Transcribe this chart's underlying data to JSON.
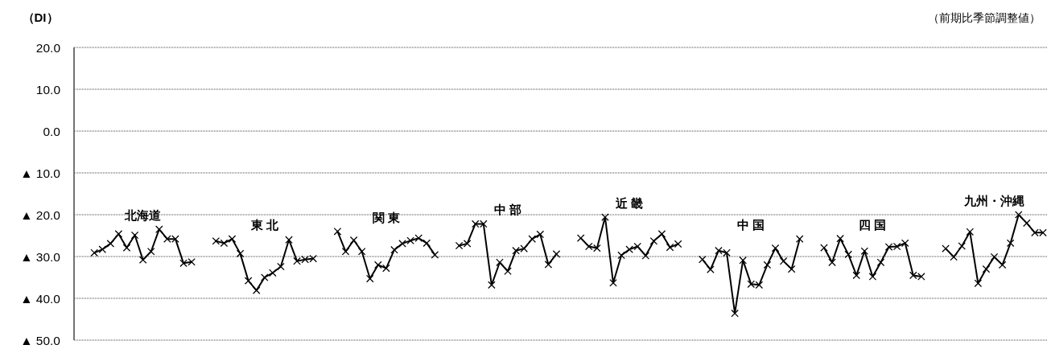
{
  "chart_data": {
    "type": "line",
    "ylabel": "（DI）",
    "annotations": [
      "（前期比季節調整値）"
    ],
    "categories": [
      null,
      null,
      null,
      null,
      null,
      null,
      null,
      null,
      null,
      null,
      null,
      null,
      null,
      null,
      null,
      null,
      null,
      null,
      null,
      null,
      null,
      null,
      null,
      null,
      null,
      null,
      null,
      null,
      null,
      null,
      null,
      null,
      null,
      null,
      null,
      null,
      null,
      null,
      null,
      null,
      null,
      null,
      null,
      null,
      null,
      null,
      null,
      null,
      null,
      null,
      null,
      null,
      null,
      null,
      null,
      null,
      null,
      null,
      null,
      null,
      null,
      null,
      null,
      null,
      null,
      null,
      null,
      null,
      null,
      null,
      null,
      null,
      null,
      null,
      null,
      null,
      null,
      null,
      null,
      null,
      null,
      null,
      null,
      null,
      null,
      null,
      null,
      null,
      null,
      null,
      null,
      null,
      null,
      null,
      null,
      null,
      null,
      null,
      null,
      null,
      null,
      null,
      null,
      null,
      null,
      null,
      null,
      null,
      null,
      null,
      null,
      null,
      null,
      null,
      null,
      null,
      null,
      null,
      null,
      null
    ],
    "series": [
      {
        "name": "北海道",
        "color": "#000000",
        "values": [
          null,
          null,
          -29.1,
          -28.3,
          -26.9,
          -24.6,
          -27.9,
          -24.9,
          -30.8,
          -28.8,
          -23.5,
          -25.8,
          -25.8,
          -31.6,
          -31.3,
          null,
          null,
          null,
          null,
          null,
          null,
          null,
          null,
          null,
          null,
          null,
          null,
          null,
          null,
          null,
          null,
          null,
          null,
          null,
          null,
          null,
          null,
          null,
          null,
          null,
          null,
          null,
          null,
          null,
          null,
          null,
          null,
          null,
          null,
          null,
          null,
          null,
          null,
          null,
          null,
          null,
          null,
          null,
          null,
          null,
          null,
          null,
          null,
          null,
          null,
          null,
          null,
          null,
          null,
          null,
          null,
          null,
          null,
          null,
          null,
          null,
          null,
          null,
          null,
          null,
          null,
          null,
          null,
          null,
          null,
          null,
          null,
          null,
          null,
          null,
          null,
          null,
          null,
          null,
          null,
          null,
          null,
          null,
          null,
          null,
          null,
          null,
          null,
          null,
          null,
          null,
          null,
          null,
          null,
          null,
          null,
          null,
          null,
          null,
          null,
          null,
          null,
          null,
          null,
          null
        ]
      },
      {
        "name": "東 北",
        "color": "#000000",
        "values": [
          null,
          null,
          null,
          null,
          null,
          null,
          null,
          null,
          null,
          null,
          null,
          null,
          null,
          null,
          null,
          null,
          null,
          -26.3,
          -26.8,
          -25.8,
          -29.3,
          -35.8,
          -38.1,
          -35.0,
          -33.9,
          -32.4,
          -26.0,
          -31.1,
          -30.7,
          -30.5,
          null,
          null,
          null,
          null,
          null,
          null,
          null,
          null,
          null,
          null,
          null,
          null,
          null,
          null,
          null,
          null,
          null,
          null,
          null,
          null,
          null,
          null,
          null,
          null,
          null,
          null,
          null,
          null,
          null,
          null,
          null,
          null,
          null,
          null,
          null,
          null,
          null,
          null,
          null,
          null,
          null,
          null,
          null,
          null,
          null,
          null,
          null,
          null,
          null,
          null,
          null,
          null,
          null,
          null,
          null,
          null,
          null,
          null,
          null,
          null,
          null,
          null,
          null,
          null,
          null,
          null,
          null,
          null,
          null,
          null,
          null,
          null,
          null,
          null,
          null,
          null,
          null,
          null,
          null,
          null,
          null,
          null,
          null,
          null,
          null,
          null,
          null,
          null,
          null,
          null
        ]
      },
      {
        "name": "関 東",
        "color": "#000000",
        "values": [
          null,
          null,
          null,
          null,
          null,
          null,
          null,
          null,
          null,
          null,
          null,
          null,
          null,
          null,
          null,
          null,
          null,
          null,
          null,
          null,
          null,
          null,
          null,
          null,
          null,
          null,
          null,
          null,
          null,
          null,
          null,
          null,
          -24.0,
          -28.8,
          -26.1,
          -28.8,
          -35.3,
          -32.0,
          -32.8,
          -28.4,
          -26.9,
          -26.2,
          -25.6,
          -26.8,
          -29.6,
          null,
          null,
          null,
          null,
          null,
          null,
          null,
          null,
          null,
          null,
          null,
          null,
          null,
          null,
          null,
          null,
          null,
          null,
          null,
          null,
          null,
          null,
          null,
          null,
          null,
          null,
          null,
          null,
          null,
          null,
          null,
          null,
          null,
          null,
          null,
          null,
          null,
          null,
          null,
          null,
          null,
          null,
          null,
          null,
          null,
          null,
          null,
          null,
          null,
          null,
          null,
          null,
          null,
          null,
          null,
          null,
          null,
          null,
          null,
          null,
          null,
          null,
          null,
          null,
          null,
          null,
          null,
          null,
          null,
          null,
          null,
          null,
          null,
          null,
          null
        ]
      },
      {
        "name": "中 部",
        "color": "#000000",
        "values": [
          null,
          null,
          null,
          null,
          null,
          null,
          null,
          null,
          null,
          null,
          null,
          null,
          null,
          null,
          null,
          null,
          null,
          null,
          null,
          null,
          null,
          null,
          null,
          null,
          null,
          null,
          null,
          null,
          null,
          null,
          null,
          null,
          null,
          null,
          null,
          null,
          null,
          null,
          null,
          null,
          null,
          null,
          null,
          null,
          null,
          null,
          null,
          -27.4,
          -26.9,
          -22.2,
          -22.2,
          -36.8,
          -31.4,
          -33.5,
          -28.6,
          -28.1,
          -25.8,
          -24.7,
          -31.9,
          -29.4,
          null,
          null,
          null,
          null,
          null,
          null,
          null,
          null,
          null,
          null,
          null,
          null,
          null,
          null,
          null,
          null,
          null,
          null,
          null,
          null,
          null,
          null,
          null,
          null,
          null,
          null,
          null,
          null,
          null,
          null,
          null,
          null,
          null,
          null,
          null,
          null,
          null,
          null,
          null,
          null,
          null,
          null,
          null,
          null,
          null,
          null,
          null,
          null,
          null,
          null,
          null,
          null,
          null,
          null,
          null,
          null,
          null,
          null,
          null,
          null
        ]
      },
      {
        "name": "近 畿",
        "color": "#000000",
        "values": [
          null,
          null,
          null,
          null,
          null,
          null,
          null,
          null,
          null,
          null,
          null,
          null,
          null,
          null,
          null,
          null,
          null,
          null,
          null,
          null,
          null,
          null,
          null,
          null,
          null,
          null,
          null,
          null,
          null,
          null,
          null,
          null,
          null,
          null,
          null,
          null,
          null,
          null,
          null,
          null,
          null,
          null,
          null,
          null,
          null,
          null,
          null,
          null,
          null,
          null,
          null,
          null,
          null,
          null,
          null,
          null,
          null,
          null,
          null,
          null,
          null,
          null,
          -25.6,
          -27.6,
          -28.0,
          -20.6,
          -36.3,
          -29.7,
          -28.3,
          -27.6,
          -29.8,
          -26.3,
          -24.6,
          -27.8,
          -27.0,
          null,
          null,
          null,
          null,
          null,
          null,
          null,
          null,
          null,
          null,
          null,
          null,
          null,
          null,
          null,
          null,
          null,
          null,
          null,
          null,
          null,
          null,
          null,
          null,
          null,
          null,
          null,
          null,
          null,
          null,
          null,
          null,
          null,
          null,
          null,
          null,
          null,
          null,
          null,
          null,
          null,
          null,
          null,
          null,
          null
        ]
      },
      {
        "name": "中 国",
        "color": "#000000",
        "values": [
          null,
          null,
          null,
          null,
          null,
          null,
          null,
          null,
          null,
          null,
          null,
          null,
          null,
          null,
          null,
          null,
          null,
          null,
          null,
          null,
          null,
          null,
          null,
          null,
          null,
          null,
          null,
          null,
          null,
          null,
          null,
          null,
          null,
          null,
          null,
          null,
          null,
          null,
          null,
          null,
          null,
          null,
          null,
          null,
          null,
          null,
          null,
          null,
          null,
          null,
          null,
          null,
          null,
          null,
          null,
          null,
          null,
          null,
          null,
          null,
          null,
          null,
          null,
          null,
          null,
          null,
          null,
          null,
          null,
          null,
          null,
          null,
          null,
          null,
          null,
          null,
          null,
          -30.7,
          -33.1,
          -28.6,
          -29.1,
          -43.6,
          -30.9,
          -36.6,
          -36.8,
          -32.0,
          -28.0,
          -31.1,
          -33.0,
          -25.8,
          null,
          null,
          null,
          null,
          null,
          null,
          null,
          null,
          null,
          null,
          null,
          null,
          null,
          null,
          null,
          null,
          null,
          null,
          null,
          null,
          null,
          null,
          null,
          null,
          null,
          null,
          null,
          null,
          null,
          null
        ]
      },
      {
        "name": "四 国",
        "color": "#000000",
        "values": [
          null,
          null,
          null,
          null,
          null,
          null,
          null,
          null,
          null,
          null,
          null,
          null,
          null,
          null,
          null,
          null,
          null,
          null,
          null,
          null,
          null,
          null,
          null,
          null,
          null,
          null,
          null,
          null,
          null,
          null,
          null,
          null,
          null,
          null,
          null,
          null,
          null,
          null,
          null,
          null,
          null,
          null,
          null,
          null,
          null,
          null,
          null,
          null,
          null,
          null,
          null,
          null,
          null,
          null,
          null,
          null,
          null,
          null,
          null,
          null,
          null,
          null,
          null,
          null,
          null,
          null,
          null,
          null,
          null,
          null,
          null,
          null,
          null,
          null,
          null,
          null,
          null,
          null,
          null,
          null,
          null,
          null,
          null,
          null,
          null,
          null,
          null,
          null,
          null,
          null,
          null,
          null,
          -27.9,
          -31.4,
          -25.7,
          -29.5,
          -34.5,
          -28.7,
          -34.8,
          -31.4,
          -27.7,
          -27.6,
          -26.8,
          -34.5,
          -34.8,
          null,
          null,
          null,
          null,
          null,
          null,
          null,
          null,
          null,
          null,
          null,
          null,
          null,
          null,
          null
        ]
      },
      {
        "name": "九州・沖縄",
        "color": "#000000",
        "values": [
          null,
          null,
          null,
          null,
          null,
          null,
          null,
          null,
          null,
          null,
          null,
          null,
          null,
          null,
          null,
          null,
          null,
          null,
          null,
          null,
          null,
          null,
          null,
          null,
          null,
          null,
          null,
          null,
          null,
          null,
          null,
          null,
          null,
          null,
          null,
          null,
          null,
          null,
          null,
          null,
          null,
          null,
          null,
          null,
          null,
          null,
          null,
          null,
          null,
          null,
          null,
          null,
          null,
          null,
          null,
          null,
          null,
          null,
          null,
          null,
          null,
          null,
          null,
          null,
          null,
          null,
          null,
          null,
          null,
          null,
          null,
          null,
          null,
          null,
          null,
          null,
          null,
          null,
          null,
          null,
          null,
          null,
          null,
          null,
          null,
          null,
          null,
          null,
          null,
          null,
          null,
          null,
          null,
          null,
          null,
          null,
          null,
          null,
          null,
          null,
          null,
          null,
          null,
          null,
          null,
          null,
          null,
          -28.1,
          -30.1,
          -27.5,
          -24.1,
          -36.4,
          -33.0,
          -30.1,
          -32.0,
          -26.8,
          -20.0,
          -22.0,
          -24.3,
          -24.3
        ]
      }
    ],
    "ylim": [
      -50,
      20
    ],
    "yticks": [
      {
        "value": 20,
        "label": "20.0"
      },
      {
        "value": 10,
        "label": "10.0"
      },
      {
        "value": 0,
        "label": "0.0"
      },
      {
        "value": -10,
        "label": "▲ 10.0"
      },
      {
        "value": -20,
        "label": "▲ 20.0"
      },
      {
        "value": -30,
        "label": "▲ 30.0"
      },
      {
        "value": -40,
        "label": "▲ 40.0"
      },
      {
        "value": -50,
        "label": "▲ 50.0"
      }
    ],
    "grid": "y",
    "marker": "cross",
    "line_style": "solid",
    "tick_labels": "y"
  }
}
